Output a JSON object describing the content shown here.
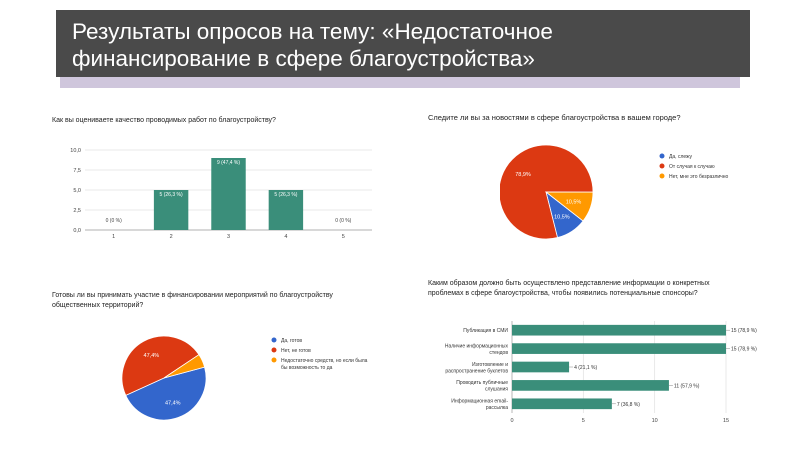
{
  "slide": {
    "title_line1": "Результаты опросов на тему: «Недостаточное",
    "title_line2": "финансирование в сфере благоустройства»"
  },
  "colors": {
    "header_bg": "#4a4a4a",
    "accent": "#cfc6dc",
    "teal": "#3a8e7a",
    "blue": "#3366cc",
    "red": "#dc3912",
    "orange": "#ff9900"
  },
  "chart_data": [
    {
      "type": "bar",
      "title": "Как вы оцениваете качество проводимых работ по благоустройству?",
      "categories": [
        "1",
        "2",
        "3",
        "4",
        "5"
      ],
      "values": [
        0,
        5,
        9,
        5,
        0
      ],
      "data_labels": [
        "0 (0 %)",
        "5 (26,3 %)",
        "9 (47,4 %)",
        "5 (26,3 %)",
        "0 (0 %)"
      ],
      "y_ticks": [
        "0,0",
        "2,5",
        "5,0",
        "7,5",
        "10,0"
      ],
      "ylim": [
        0,
        10
      ],
      "grid": true
    },
    {
      "type": "pie",
      "title": "Следите ли вы за новостями в сфере благоустройства в вашем городе?",
      "labels": [
        "Да, слежу",
        "От случая к случаю",
        "Нет, мне это безразлично"
      ],
      "values": [
        10.5,
        78.9,
        10.5
      ],
      "slice_labels": [
        "10,5%",
        "78,9%",
        "10,5%"
      ],
      "colors": [
        "#3366cc",
        "#dc3912",
        "#ff9900"
      ],
      "legend": "right"
    },
    {
      "type": "pie",
      "title_line1": "Готовы ли вы принимать участие в финансировании мероприятий по благоустройству",
      "title_line2": "общественных территорий?",
      "labels": [
        "Да, готов",
        "Нет, не готов",
        "Недостаточно средств, но если была бы возможность то да"
      ],
      "legend_lines": [
        [
          "Да, готов"
        ],
        [
          "Нет, не готов"
        ],
        [
          "Недостаточно средств, но если была",
          "бы возможность то да"
        ]
      ],
      "values": [
        47.4,
        47.4,
        5.2
      ],
      "slice_labels": [
        "47,4%",
        "47,4%",
        ""
      ],
      "colors": [
        "#3366cc",
        "#dc3912",
        "#ff9900"
      ],
      "legend": "right"
    },
    {
      "type": "bar",
      "orientation": "horizontal",
      "title_line1": "Каким образом должно быть осуществлено представление информации о конкретных",
      "title_line2": "проблемах в сфере благоустройства, чтобы появились потенциальные спонсоры?",
      "categories": [
        "Публикация в СМИ",
        "Наличие информационных стендов",
        "Изготовление и распространение буклетов",
        "Проводить публичные слушания",
        "Информационная email-рассылка"
      ],
      "category_lines": [
        [
          "Публикация в СМИ"
        ],
        [
          "Наличие информационных",
          "стендов"
        ],
        [
          "Изготовление и",
          "распространение буклетов"
        ],
        [
          "Проводить публичные",
          "слушания"
        ],
        [
          "Информационная email-",
          "рассылка"
        ]
      ],
      "values": [
        15,
        15,
        4,
        11,
        7
      ],
      "data_labels": [
        "15 (78,9 %)",
        "15 (78,9 %)",
        "4 (21,1 %)",
        "11 (57,9 %)",
        "7 (36,8 %)"
      ],
      "x_ticks": [
        "0",
        "5",
        "10",
        "15"
      ],
      "xlim": [
        0,
        15
      ],
      "grid": true
    }
  ]
}
